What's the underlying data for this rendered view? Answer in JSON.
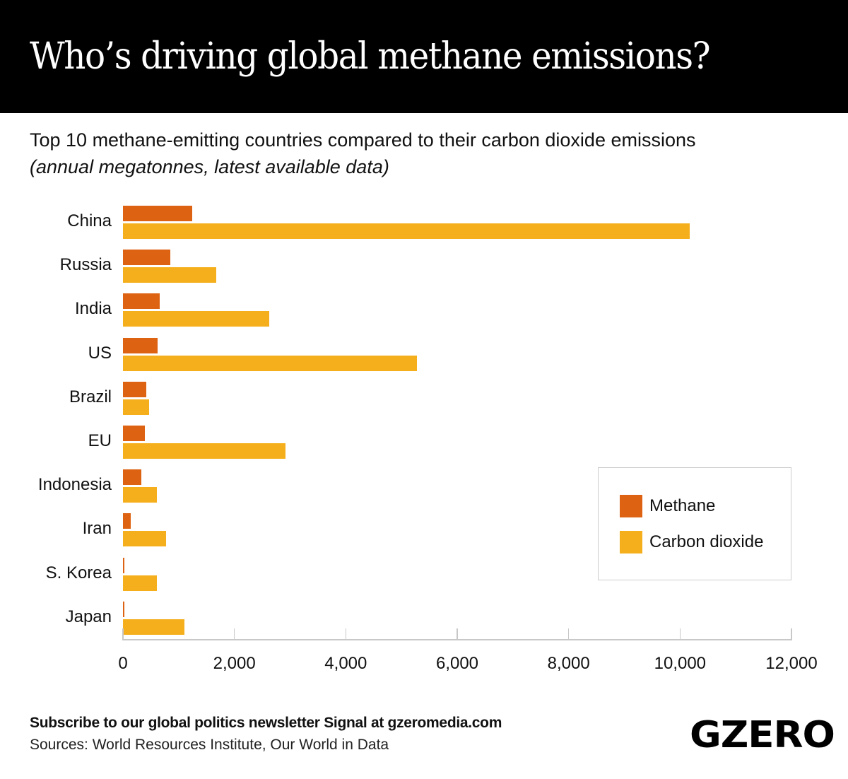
{
  "header": {
    "title": "Who’s driving global methane emissions?"
  },
  "subtitle": "Top 10 methane-emitting countries compared to their carbon dioxide emissions",
  "subtitle_note": "(annual megatonnes, latest available data)",
  "legend": {
    "items": [
      {
        "label": "Methane",
        "color": "#dd6211"
      },
      {
        "label": "Carbon dioxide",
        "color": "#f5af1c"
      }
    ]
  },
  "axis": {
    "ticks": [
      "0",
      "2,000",
      "4,000",
      "6,000",
      "8,000",
      "10,000",
      "12,000"
    ]
  },
  "footer": {
    "subscribe": "Subscribe to our global politics newsletter Signal at gzeromedia.com",
    "sources": "Sources: World Resources Institute, Our World in Data",
    "logo": "GZERO"
  },
  "chart_data": {
    "type": "bar",
    "orientation": "horizontal",
    "title": "Who’s driving global methane emissions?",
    "subtitle": "Top 10 methane-emitting countries compared to their carbon dioxide emissions (annual megatonnes, latest available data)",
    "xlabel": "",
    "ylabel": "",
    "xlim": [
      0,
      12000
    ],
    "x_ticks": [
      0,
      2000,
      4000,
      6000,
      8000,
      10000,
      12000
    ],
    "grid": false,
    "legend_position": "right-inside",
    "categories": [
      "China",
      "Russia",
      "India",
      "US",
      "Brazil",
      "EU",
      "Indonesia",
      "Iran",
      "S. Korea",
      "Japan"
    ],
    "series": [
      {
        "name": "Methane",
        "color": "#dd6211",
        "values": [
          1240,
          850,
          660,
          620,
          415,
          390,
          330,
          145,
          20,
          20
        ]
      },
      {
        "name": "Carbon dioxide",
        "color": "#f5af1c",
        "values": [
          10175,
          1675,
          2620,
          5280,
          465,
          2920,
          615,
          780,
          615,
          1100
        ]
      }
    ]
  }
}
